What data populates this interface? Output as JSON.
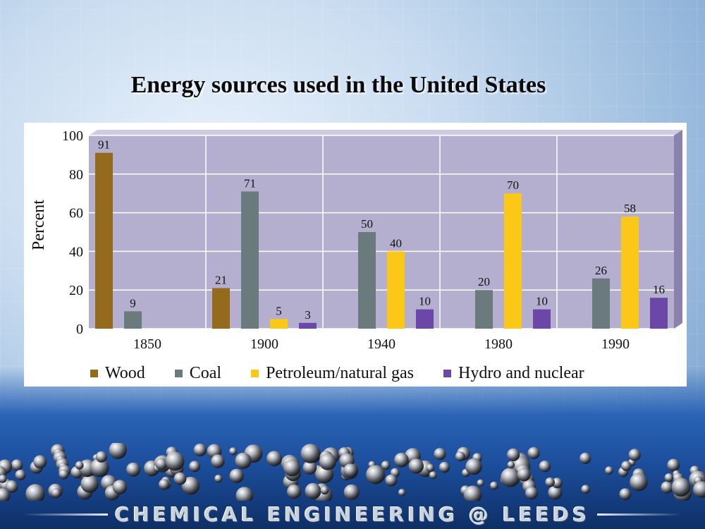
{
  "slide": {
    "title": "Energy sources used in the United States",
    "footer": "CHEMICAL ENGINEERING @ LEEDS"
  },
  "colors": {
    "wood": "#946a1d",
    "coal": "#6a7a7d",
    "petroleum": "#fcc817",
    "hydro": "#6b47a8",
    "plot_bg": "#b4afcf",
    "plot_side": "#8a82ad",
    "grid": "#ffffff"
  },
  "chart_data": {
    "type": "bar",
    "title": "Energy sources used in the United States",
    "xlabel": "",
    "ylabel": "Percent",
    "ylim": [
      0,
      100
    ],
    "yticks": [
      0,
      20,
      40,
      60,
      80,
      100
    ],
    "grid": true,
    "legend_position": "bottom",
    "categories": [
      "1850",
      "1900",
      "1940",
      "1980",
      "1990"
    ],
    "series": [
      {
        "name": "Wood",
        "values": [
          91,
          21,
          null,
          null,
          null
        ]
      },
      {
        "name": "Coal",
        "values": [
          9,
          71,
          50,
          20,
          26
        ]
      },
      {
        "name": "Petroleum/natural gas",
        "values": [
          null,
          5,
          40,
          70,
          58
        ]
      },
      {
        "name": "Hydro and nuclear",
        "values": [
          null,
          3,
          10,
          10,
          16
        ]
      }
    ]
  }
}
